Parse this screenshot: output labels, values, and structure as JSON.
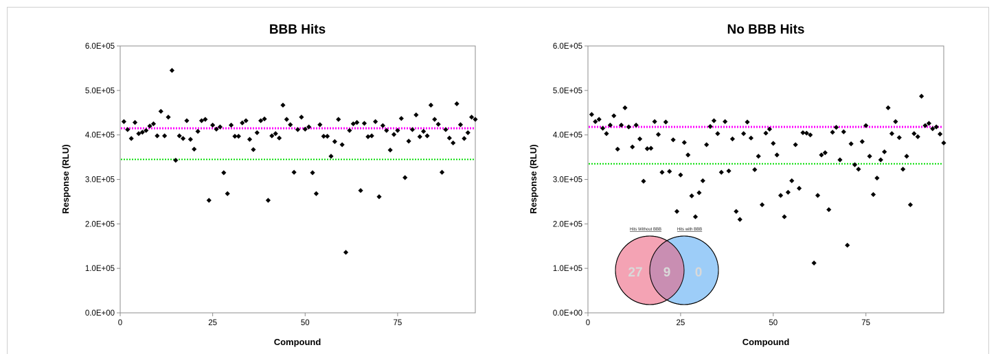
{
  "chart_data": [
    {
      "type": "scatter",
      "title": "BBB Hits",
      "xlabel": "Compound",
      "ylabel": "Response (RLU)",
      "xlim": [
        0,
        96
      ],
      "ylim": [
        0,
        600000
      ],
      "xticks": [
        "0",
        "25",
        "50",
        "75"
      ],
      "yticks": [
        "0.0E+00",
        "1.0E+05",
        "2.0E+05",
        "3.0E+05",
        "4.0E+05",
        "5.0E+05",
        "6.0E+05"
      ],
      "grid": false,
      "reference_lines": [
        {
          "y": 415000,
          "color": "#ff00ff",
          "style": "dotted"
        },
        {
          "y": 345000,
          "color": "#00dd00",
          "style": "dotted"
        }
      ],
      "x": [
        1,
        2,
        3,
        4,
        5,
        6,
        7,
        8,
        9,
        10,
        11,
        12,
        13,
        14,
        15,
        16,
        17,
        18,
        19,
        20,
        21,
        22,
        23,
        24,
        25,
        26,
        27,
        28,
        29,
        30,
        31,
        32,
        33,
        34,
        35,
        36,
        37,
        38,
        39,
        40,
        41,
        42,
        43,
        44,
        45,
        46,
        47,
        48,
        49,
        50,
        51,
        52,
        53,
        54,
        55,
        56,
        57,
        58,
        59,
        60,
        61,
        62,
        63,
        64,
        65,
        66,
        67,
        68,
        69,
        70,
        71,
        72,
        73,
        74,
        75,
        76,
        77,
        78,
        79,
        80,
        81,
        82,
        83,
        84,
        85,
        86,
        87,
        88,
        89,
        90,
        91,
        92,
        93,
        94,
        95,
        96
      ],
      "y": [
        430000,
        412000,
        392000,
        428000,
        403000,
        406000,
        410000,
        420000,
        425000,
        398000,
        453000,
        398000,
        440000,
        545000,
        343000,
        398000,
        392000,
        432000,
        390000,
        368000,
        408000,
        432000,
        435000,
        253000,
        422000,
        413000,
        418000,
        315000,
        268000,
        422000,
        397000,
        397000,
        427000,
        432000,
        390000,
        367000,
        405000,
        432000,
        436000,
        253000,
        398000,
        403000,
        393000,
        467000,
        435000,
        423000,
        316000,
        412000,
        440000,
        413000,
        418000,
        315000,
        268000,
        423000,
        397000,
        397000,
        352000,
        385000,
        435000,
        378000,
        136000,
        410000,
        425000,
        428000,
        275000,
        426000,
        396000,
        398000,
        430000,
        261000,
        421000,
        410000,
        366000,
        401000,
        410000,
        437000,
        304000,
        386000,
        412000,
        445000,
        396000,
        408000,
        398000,
        467000,
        435000,
        424000,
        316000,
        412000,
        393000,
        382000,
        470000,
        423000,
        392000,
        405000,
        440000,
        435000
      ],
      "series_color": "#000000"
    },
    {
      "type": "scatter",
      "title": "No BBB Hits",
      "xlabel": "Compound",
      "ylabel": "Response (RLU)",
      "xlim": [
        0,
        96
      ],
      "ylim": [
        0,
        600000
      ],
      "xticks": [
        "0",
        "25",
        "50",
        "75"
      ],
      "yticks": [
        "0.0E+00",
        "1.0E+05",
        "2.0E+05",
        "3.0E+05",
        "4.0E+05",
        "5.0E+05",
        "6.0E+05"
      ],
      "grid": false,
      "reference_lines": [
        {
          "y": 418000,
          "color": "#ff00ff",
          "style": "dotted"
        },
        {
          "y": 335000,
          "color": "#00dd00",
          "style": "dotted"
        }
      ],
      "x": [
        1,
        2,
        3,
        4,
        5,
        6,
        7,
        8,
        9,
        10,
        11,
        12,
        13,
        14,
        15,
        16,
        17,
        18,
        19,
        20,
        21,
        22,
        23,
        24,
        25,
        26,
        27,
        28,
        29,
        30,
        31,
        32,
        33,
        34,
        35,
        36,
        37,
        38,
        39,
        40,
        41,
        42,
        43,
        44,
        45,
        46,
        47,
        48,
        49,
        50,
        51,
        52,
        53,
        54,
        55,
        56,
        57,
        58,
        59,
        60,
        61,
        62,
        63,
        64,
        65,
        66,
        67,
        68,
        69,
        70,
        71,
        72,
        73,
        74,
        75,
        76,
        77,
        78,
        79,
        80,
        81,
        82,
        83,
        84,
        85,
        86,
        87,
        88,
        89,
        90,
        91,
        92,
        93,
        94,
        95,
        96
      ],
      "y": [
        446000,
        430000,
        435000,
        415000,
        403000,
        422000,
        443000,
        368000,
        422000,
        461000,
        418000,
        373000,
        422000,
        391000,
        296000,
        369000,
        370000,
        430000,
        401000,
        316000,
        429000,
        318000,
        389000,
        228000,
        310000,
        383000,
        355000,
        263000,
        216000,
        270000,
        297000,
        378000,
        419000,
        432000,
        403000,
        316000,
        430000,
        319000,
        391000,
        228000,
        210000,
        403000,
        429000,
        393000,
        322000,
        352000,
        243000,
        404000,
        413000,
        381000,
        355000,
        264000,
        216000,
        271000,
        297000,
        378000,
        280000,
        405000,
        404000,
        400000,
        112000,
        264000,
        355000,
        360000,
        232000,
        406000,
        417000,
        344000,
        407000,
        152000,
        380000,
        333000,
        323000,
        385000,
        421000,
        352000,
        266000,
        303000,
        344000,
        362000,
        461000,
        403000,
        430000,
        394000,
        323000,
        352000,
        243000,
        403000,
        396000,
        487000,
        421000,
        426000,
        414000,
        418000,
        402000,
        382000
      ],
      "series_color": "#000000",
      "venn": {
        "left_title": "Hits Without BBB",
        "right_title": "Hits with BBB",
        "left_only": "27",
        "overlap": "9",
        "right_only": "0",
        "left_color": "#f4a3b4",
        "right_color": "#9dcdf8",
        "overlap_color": "#c98eb2"
      }
    }
  ]
}
